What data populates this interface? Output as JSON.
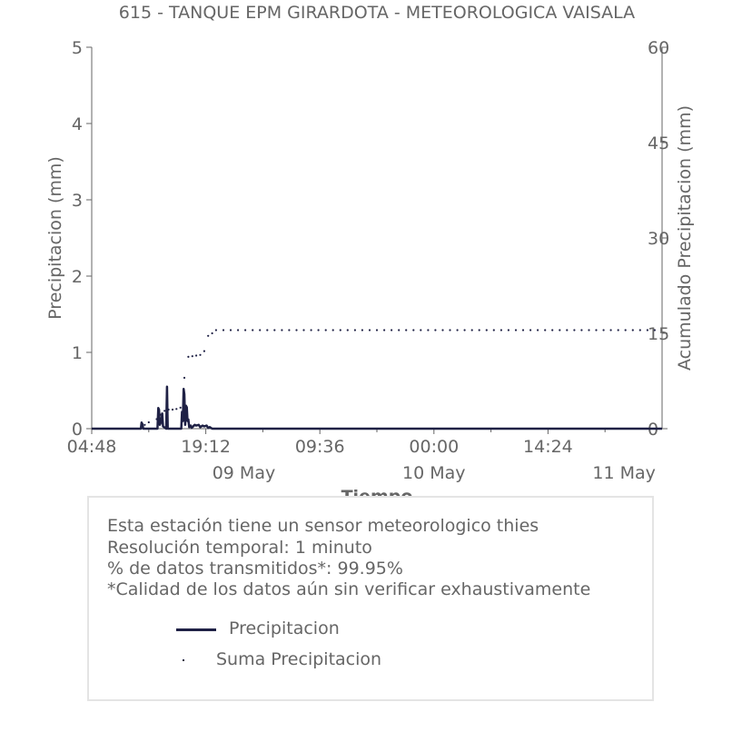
{
  "chart_data": {
    "type": "line",
    "title": "615 - TANQUE EPM GIRARDOTA - METEOROLOGICA VAISALA",
    "xlabel": "Tiempo",
    "ylabel": "Precipitacion (mm)",
    "y2label": "Acumulado Precipitacion (mm)",
    "ylim": [
      0,
      5
    ],
    "y2lim": [
      0,
      60
    ],
    "y_ticks": [
      "0",
      "1",
      "2",
      "3",
      "4",
      "5"
    ],
    "y2_ticks": [
      "0",
      "15",
      "30",
      "45",
      "60"
    ],
    "x_range_hours": [
      4.8,
      76.8
    ],
    "x_tick_labels": [
      "04:48",
      "19:12",
      "09:36",
      "00:00",
      "14:24"
    ],
    "x_tick_hours": [
      4.8,
      19.2,
      33.6,
      48.0,
      62.4
    ],
    "date_labels": [
      "09 May",
      "10 May",
      "11 May"
    ],
    "date_hours": [
      24,
      48,
      72
    ],
    "grid": false,
    "series": [
      {
        "name": "Precipitacion",
        "axis": "left",
        "color": "#1f2145",
        "style": "line",
        "x": [
          4.8,
          11.0,
          11.1,
          11.2,
          11.3,
          13.1,
          13.2,
          13.3,
          13.4,
          13.6,
          13.7,
          13.8,
          14.2,
          14.3,
          14.4,
          16.1,
          16.2,
          16.3,
          16.4,
          16.5,
          16.6,
          16.7,
          16.8,
          16.9,
          17.0,
          17.1,
          17.3,
          17.4,
          17.8,
          18.0,
          18.3,
          18.5,
          18.8,
          19.0,
          19.3,
          19.5,
          19.7,
          20.0,
          76.8
        ],
        "y": [
          0,
          0,
          0.08,
          0.06,
          0,
          0,
          0.27,
          0.25,
          0.05,
          0.1,
          0.2,
          0.03,
          0,
          0.55,
          0,
          0,
          0.22,
          0.1,
          0.52,
          0.45,
          0.05,
          0.3,
          0.28,
          0.1,
          0.12,
          0.02,
          0.04,
          0.01,
          0.05,
          0.04,
          0.05,
          0.02,
          0.04,
          0.03,
          0.04,
          0.01,
          0.02,
          0,
          0
        ]
      },
      {
        "name": "Suma Precipitacion",
        "axis": "right",
        "color": "#1f2145",
        "style": "dotted",
        "x": [
          11.0,
          11.5,
          12.0,
          13.0,
          13.5,
          14.0,
          14.5,
          15.0,
          15.5,
          16.0,
          16.5,
          17.0,
          17.5,
          18.0,
          18.5,
          19.0,
          19.5,
          20.0,
          20.5,
          76.8
        ],
        "y": [
          0.1,
          0.6,
          1.0,
          1.5,
          2.2,
          2.8,
          3.0,
          3.0,
          3.1,
          3.3,
          8.0,
          11.3,
          11.4,
          11.5,
          11.6,
          12.2,
          14.6,
          15.0,
          15.5,
          15.5
        ]
      }
    ]
  },
  "info": {
    "line1": "Esta estación tiene un sensor meteorologico thies",
    "line2": "Resolución temporal: 1 minuto",
    "line3": "% de datos transmitidos*: 99.95%",
    "line4": "*Calidad de los datos aún sin verificar exhaustivamente"
  },
  "legend": {
    "line_label": "Precipitacion",
    "dot_label": "Suma Precipitacion"
  }
}
